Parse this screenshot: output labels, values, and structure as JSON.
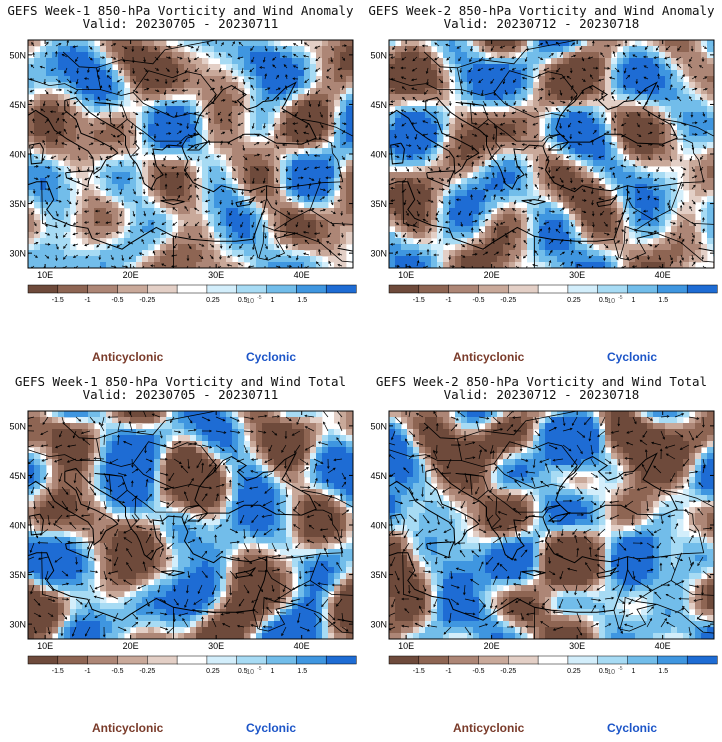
{
  "panels": [
    {
      "id": "w1-anom",
      "title": "GEFS Week-1 850-hPa Vorticity and Wind Anomaly",
      "valid": "Valid: 20230705 - 20230711"
    },
    {
      "id": "w2-anom",
      "title": "GEFS Week-2 850-hPa Vorticity and Wind Anomaly",
      "valid": "Valid: 20230712 - 20230718"
    },
    {
      "id": "w1-total",
      "title": "GEFS Week-1 850-hPa Vorticity and Wind Total",
      "valid": "Valid: 20230705 - 20230711"
    },
    {
      "id": "w2-total",
      "title": "GEFS Week-2 850-hPa Vorticity and Wind Total",
      "valid": "Valid: 20230712 - 20230718"
    }
  ],
  "map": {
    "lat_labels": [
      "50N",
      "45N",
      "40N",
      "35N",
      "30N"
    ],
    "lon_labels": [
      "10E",
      "20E",
      "30E",
      "40E"
    ]
  },
  "colorbar": {
    "ticks": [
      "-1.5",
      "-1",
      "-0.5",
      "-0.25",
      "0.25",
      "0.5",
      "1",
      "1.5"
    ],
    "scale_label": "10",
    "scale_exp": "-5",
    "colors": [
      "#6e4a3b",
      "#8e6553",
      "#ad8676",
      "#c9a99a",
      "#e3cfc6",
      "#ffffff",
      "#d3eefb",
      "#a7dbf4",
      "#72bdea",
      "#3f96e0",
      "#1e6cd4"
    ]
  },
  "legend": {
    "anticyclonic": "Anticyclonic",
    "cyclonic": "Cyclonic"
  },
  "colors": {
    "anticyclonic_text": "#7a3b2a",
    "cyclonic_text": "#1c55c8"
  }
}
